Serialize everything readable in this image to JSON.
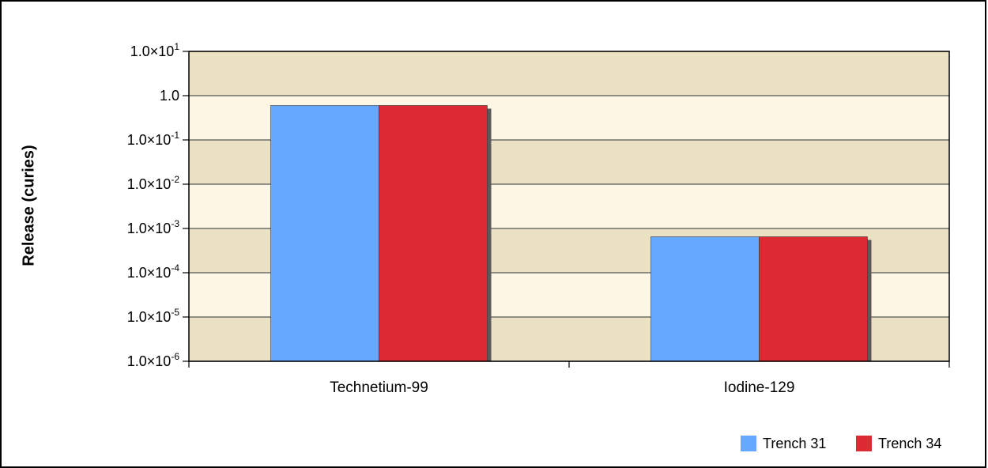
{
  "chart_data": {
    "type": "bar",
    "ylabel": "Release (curies)",
    "yscale": "log",
    "ylim": [
      1e-06,
      10
    ],
    "categories": [
      "Technetium-99",
      "Iodine-129"
    ],
    "series": [
      {
        "name": "Trench 31",
        "color": "#66A8FF",
        "values": [
          0.6,
          0.00065
        ]
      },
      {
        "name": "Trench 34",
        "color": "#DC2B33",
        "values": [
          0.6,
          0.00065
        ]
      }
    ],
    "yticks": [
      {
        "value": 10,
        "mantissa": "1.0×10",
        "exp": "1"
      },
      {
        "value": 1,
        "mantissa": "1.0",
        "exp": ""
      },
      {
        "value": 0.1,
        "mantissa": "1.0×10",
        "exp": "-1"
      },
      {
        "value": 0.01,
        "mantissa": "1.0×10",
        "exp": "-2"
      },
      {
        "value": 0.001,
        "mantissa": "1.0×10",
        "exp": "-3"
      },
      {
        "value": 0.0001,
        "mantissa": "1.0×10",
        "exp": "-4"
      },
      {
        "value": 1e-05,
        "mantissa": "1.0×10",
        "exp": "-5"
      },
      {
        "value": 1e-06,
        "mantissa": "1.0×10",
        "exp": "-6"
      }
    ],
    "grid": true,
    "band_colors": [
      "#EBE2C3",
      "#FFF7E6"
    ],
    "legend_position": "bottom-right"
  }
}
